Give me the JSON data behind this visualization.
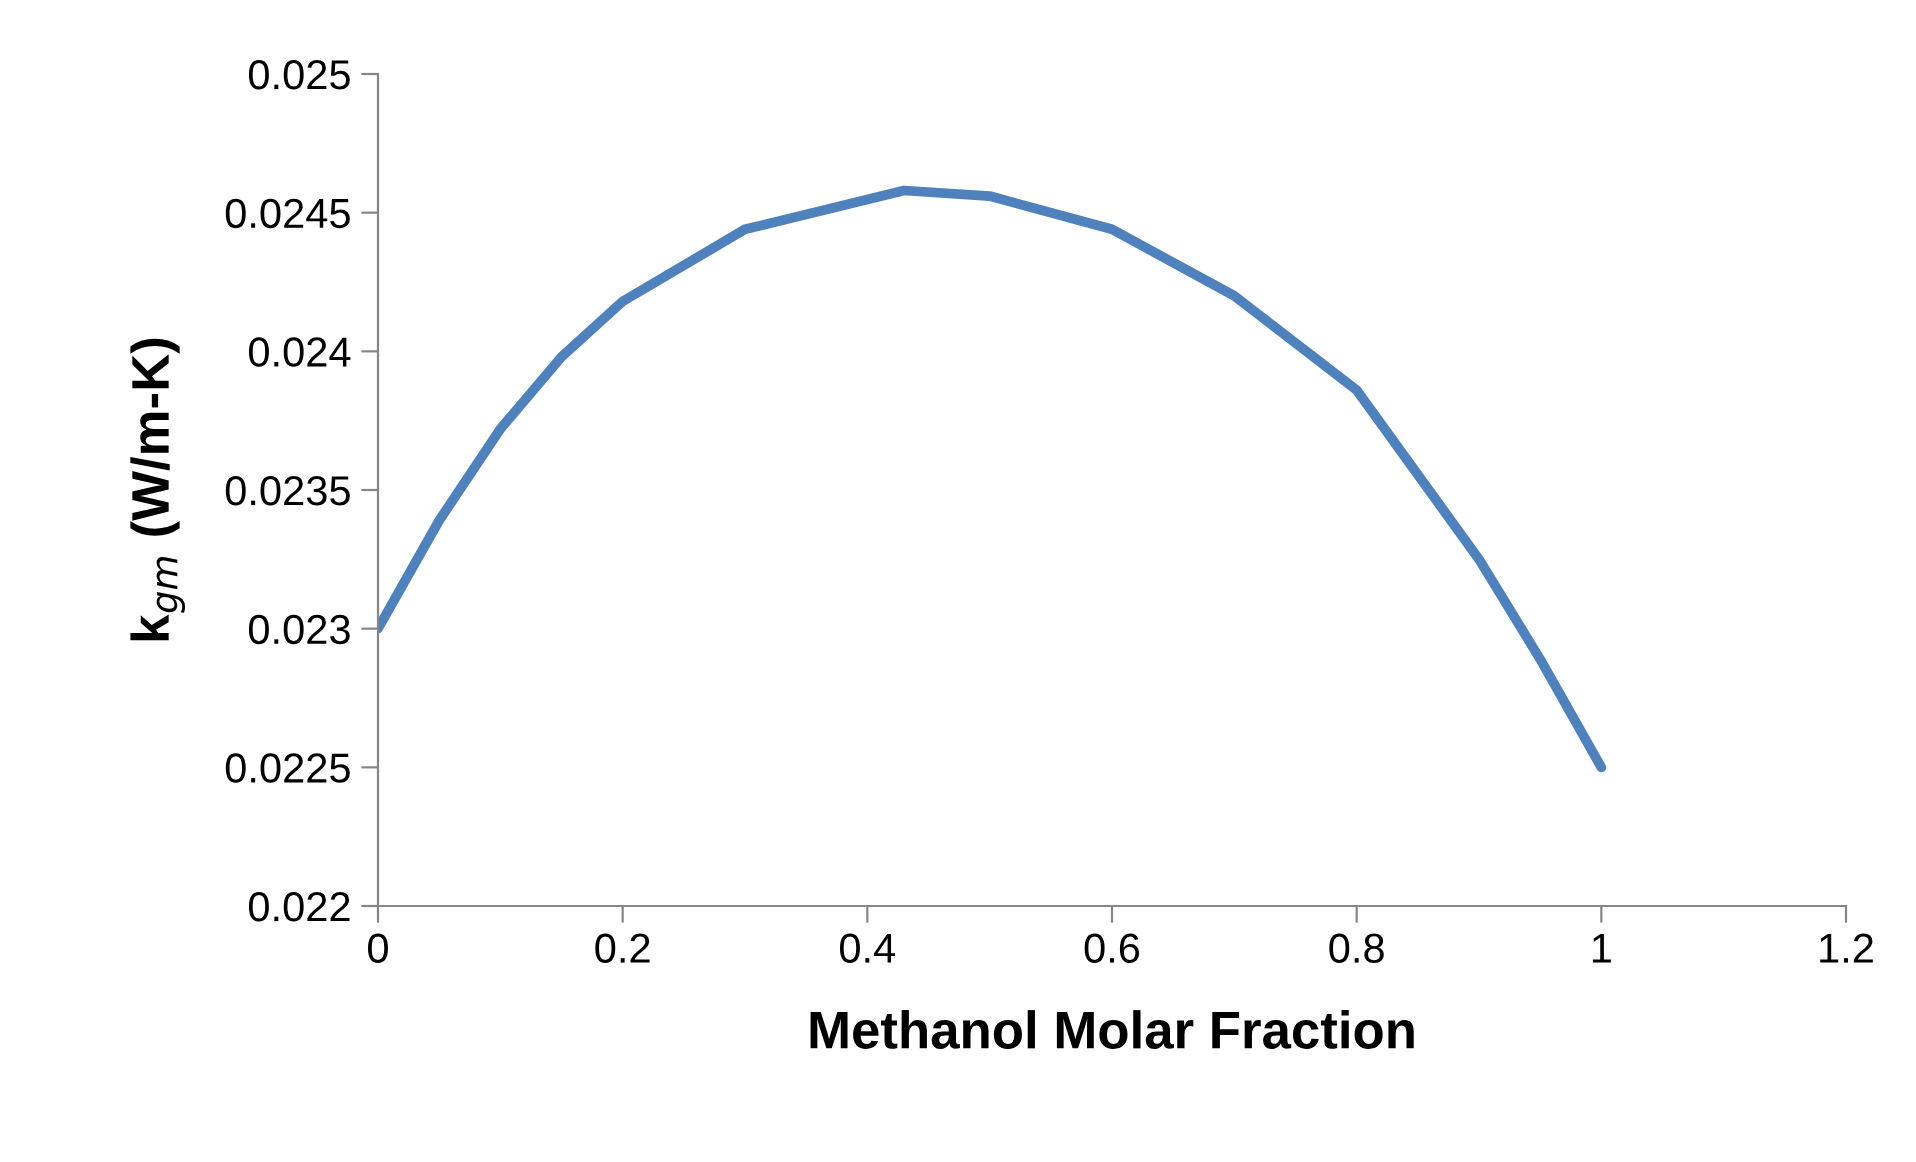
{
  "chart_data": {
    "type": "line",
    "xlabel": "Methanol Molar Fraction",
    "ylabel": "k$_{gm}$ (W/m-K)",
    "series": [
      {
        "color": "#4f81bd",
        "x": [
          0,
          0.05,
          0.1,
          0.15,
          0.2,
          0.3,
          0.43,
          0.5,
          0.6,
          0.7,
          0.8,
          0.9,
          0.95,
          1
        ],
        "values": [
          0.023,
          0.02339,
          0.02372,
          0.02398,
          0.02418,
          0.02444,
          0.02458,
          0.02456,
          0.02444,
          0.0242,
          0.02386,
          0.02325,
          0.02289,
          0.0225
        ]
      }
    ],
    "xlim": [
      0,
      1.2
    ],
    "xticks": [
      0,
      0.2,
      0.4,
      0.6,
      0.8,
      1,
      1.2
    ],
    "ylim": [
      0.022,
      0.025
    ],
    "yticks": [
      0.022,
      0.0225,
      0.023,
      0.0235,
      0.024,
      0.0245,
      0.025
    ],
    "grid": false,
    "legend": false,
    "marker": "none",
    "line_style": "solid"
  }
}
